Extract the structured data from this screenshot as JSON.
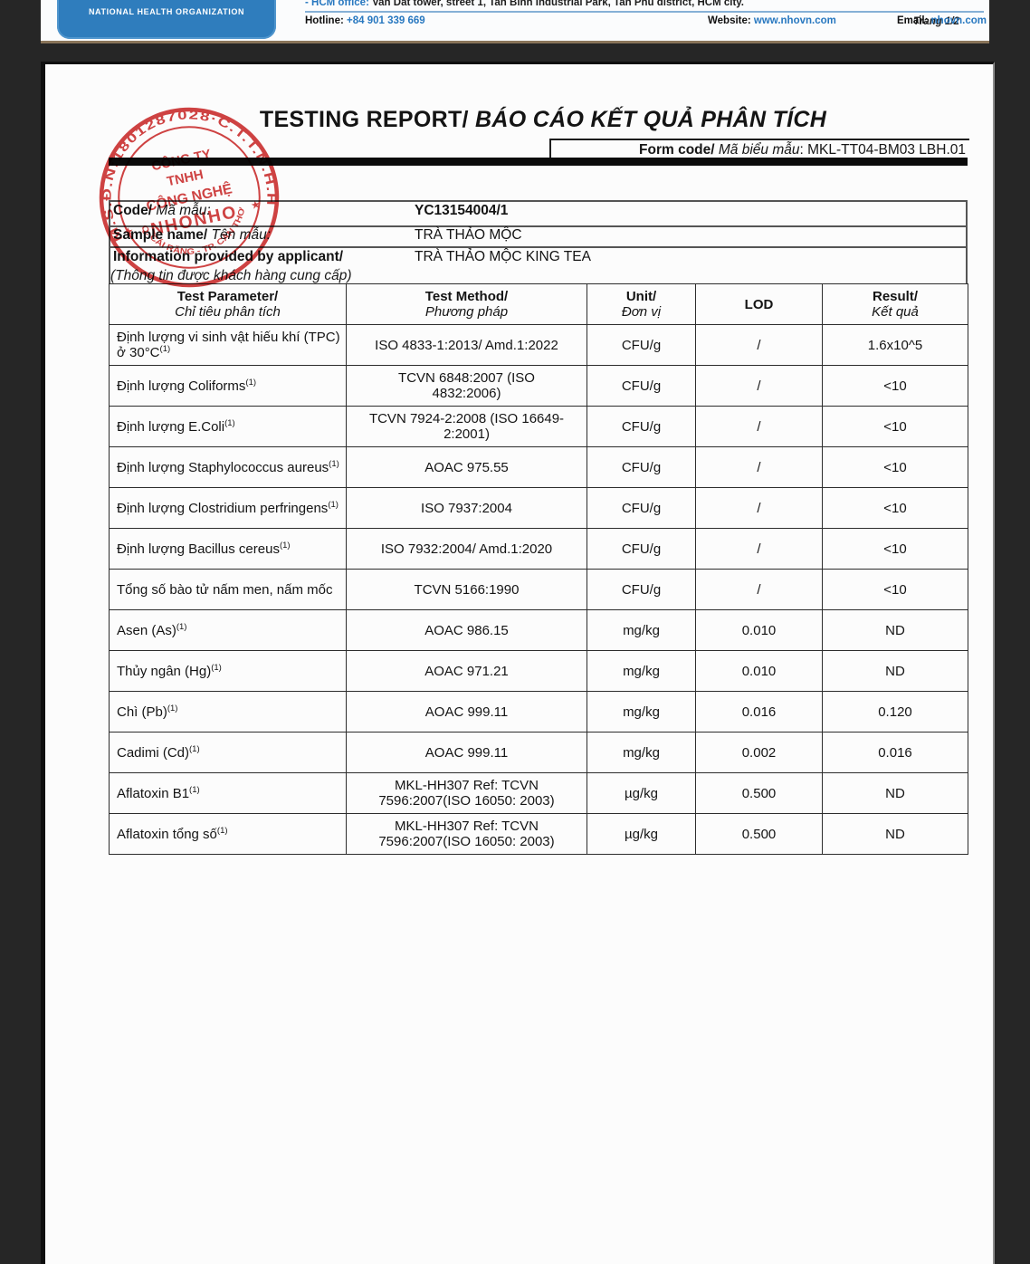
{
  "header": {
    "logo_text": "NATIONAL HEALTH ORGANIZATION",
    "office_label": "- HCM office:",
    "office_text": " Van Dat tower, street 1, Tan Binh Industrial Park, Tan Phu district, HCM city.",
    "hotline_label": "Hotline: ",
    "hotline_value": "+84 901 339 669",
    "website_label": "Website: ",
    "website_value": "www.nhovn.com",
    "email_label": "Email: ",
    "email_value": "nhovn.com",
    "page_indicator": "Trang 1/2"
  },
  "report": {
    "title_en": "TESTING REPORT/",
    "title_vi": " BÁO CÁO KẾT QUẢ PHÂN TÍCH",
    "form_code_label_en": "Form code/",
    "form_code_label_vi": " Mã biểu mẫu",
    "form_code_sep": ": ",
    "form_code_value": "MKL-TT04-BM03 LBH.01",
    "info_rows": [
      {
        "label_en": "Code/",
        "label_vi": " Mã mẫu:",
        "value": "YC13154004/1"
      },
      {
        "label_en": "Sample name/",
        "label_vi": " Tên mẫu:",
        "value": "TRÀ THẢO MỘC"
      },
      {
        "label_en": "Information provided by applicant/",
        "label_vi": "(Thông tin được khách hàng cung cấp)",
        "value": "TRÀ THẢO MỘC KING TEA"
      }
    ]
  },
  "stamp": {
    "ring_text": "M.S.Đ.N:1801287028·C.T.T.N.H.H",
    "line1": "CÔNG TY",
    "line2": "TNHH",
    "line3": "CÔNG NGHỆ",
    "line4": "NHONHO",
    "bottom_text": "Q. CÁI RĂNG - TP. CẦN THƠ",
    "star_left": "★",
    "star_right": "★",
    "color": "#cd3333"
  },
  "table": {
    "headers": [
      {
        "en": "Test Parameter/",
        "vi": "Chỉ tiêu phân tích"
      },
      {
        "en": "Test Method/",
        "vi": "Phương pháp"
      },
      {
        "en": "Unit/",
        "vi": "Đơn vị"
      },
      {
        "en": "LOD",
        "vi": ""
      },
      {
        "en": "Result/",
        "vi": "Kết quả"
      }
    ],
    "rows": [
      {
        "parameter": "Định lượng vi sinh vật hiếu khí (TPC) ở 30°C",
        "sup": "(1)",
        "method": "ISO 4833-1:2013/ Amd.1:2022",
        "unit": "CFU/g",
        "lod": "/",
        "result": "1.6x10^5"
      },
      {
        "parameter": "Định lượng Coliforms",
        "sup": "(1)",
        "method": "TCVN 6848:2007 (ISO 4832:2006)",
        "unit": "CFU/g",
        "lod": "/",
        "result": "<10"
      },
      {
        "parameter": "Định lượng E.Coli",
        "sup": "(1)",
        "method": "TCVN 7924-2:2008 (ISO 16649-2:2001)",
        "unit": "CFU/g",
        "lod": "/",
        "result": "<10"
      },
      {
        "parameter": "Định lượng Staphylococcus aureus",
        "sup": "(1)",
        "method": "AOAC 975.55",
        "unit": "CFU/g",
        "lod": "/",
        "result": "<10"
      },
      {
        "parameter": "Định lượng Clostridium perfringens",
        "sup": "(1)",
        "method": "ISO 7937:2004",
        "unit": "CFU/g",
        "lod": "/",
        "result": "<10"
      },
      {
        "parameter": "Định lượng Bacillus cereus",
        "sup": "(1)",
        "method": "ISO 7932:2004/ Amd.1:2020",
        "unit": "CFU/g",
        "lod": "/",
        "result": "<10"
      },
      {
        "parameter": "Tổng số bào tử nấm men, nấm mốc",
        "sup": "",
        "method": "TCVN 5166:1990",
        "unit": "CFU/g",
        "lod": "/",
        "result": "<10"
      },
      {
        "parameter": "Asen (As)",
        "sup": "(1)",
        "method": "AOAC 986.15",
        "unit": "mg/kg",
        "lod": "0.010",
        "result": "ND"
      },
      {
        "parameter": "Thủy ngân (Hg)",
        "sup": "(1)",
        "method": "AOAC 971.21",
        "unit": "mg/kg",
        "lod": "0.010",
        "result": "ND"
      },
      {
        "parameter": "Chì (Pb)",
        "sup": "(1)",
        "method": "AOAC 999.11",
        "unit": "mg/kg",
        "lod": "0.016",
        "result": "0.120"
      },
      {
        "parameter": "Cadimi (Cd)",
        "sup": "(1)",
        "method": "AOAC 999.11",
        "unit": "mg/kg",
        "lod": "0.002",
        "result": "0.016"
      },
      {
        "parameter": "Aflatoxin B1",
        "sup": "(1)",
        "method": "MKL-HH307 Ref: TCVN 7596:2007(ISO 16050: 2003)",
        "unit": "µg/kg",
        "lod": "0.500",
        "result": "ND"
      },
      {
        "parameter": "Aflatoxin tổng số",
        "sup": "(1)",
        "method": "MKL-HH307 Ref: TCVN 7596:2007(ISO 16050: 2003)",
        "unit": "µg/kg",
        "lod": "0.500",
        "result": "ND"
      }
    ]
  }
}
